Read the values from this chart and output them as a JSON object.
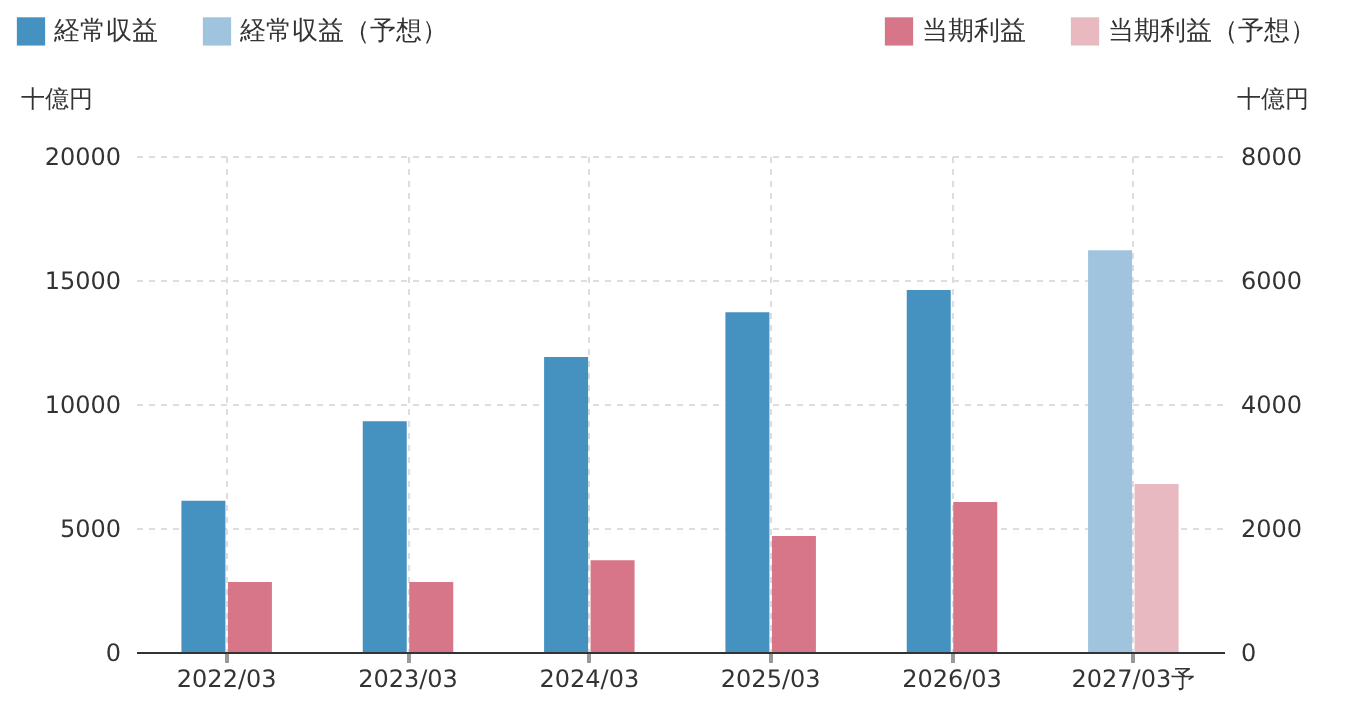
{
  "chart_data": {
    "type": "bar",
    "categories": [
      "2022/03",
      "2023/03",
      "2024/03",
      "2025/03",
      "2026/03",
      "2027/03予"
    ],
    "series": [
      {
        "name": "経常収益",
        "color": "#4592c1",
        "values": [
          6100,
          9300,
          11900,
          13700,
          14600,
          null
        ]
      },
      {
        "name": "経常収益（予想）",
        "color": "#a0c4de",
        "values": [
          null,
          null,
          null,
          null,
          null,
          16200
        ]
      },
      {
        "name": "当期利益",
        "color": "#d77689",
        "axis": "y2",
        "values": [
          1130,
          1130,
          1480,
          1870,
          2420,
          null
        ]
      },
      {
        "name": "当期利益（予想）",
        "color": "#e9b9c2",
        "axis": "y2",
        "values": [
          null,
          null,
          null,
          null,
          null,
          2710
        ]
      }
    ],
    "ylabel": "十億円",
    "y2label": "十億円",
    "ylim": [
      0,
      20000
    ],
    "yticks": [
      0,
      5000,
      10000,
      15000,
      20000
    ],
    "y2lim": [
      0,
      8000
    ],
    "y2ticks": [
      0,
      2000,
      4000,
      6000,
      8000
    ],
    "grid": true,
    "legend": "top"
  }
}
